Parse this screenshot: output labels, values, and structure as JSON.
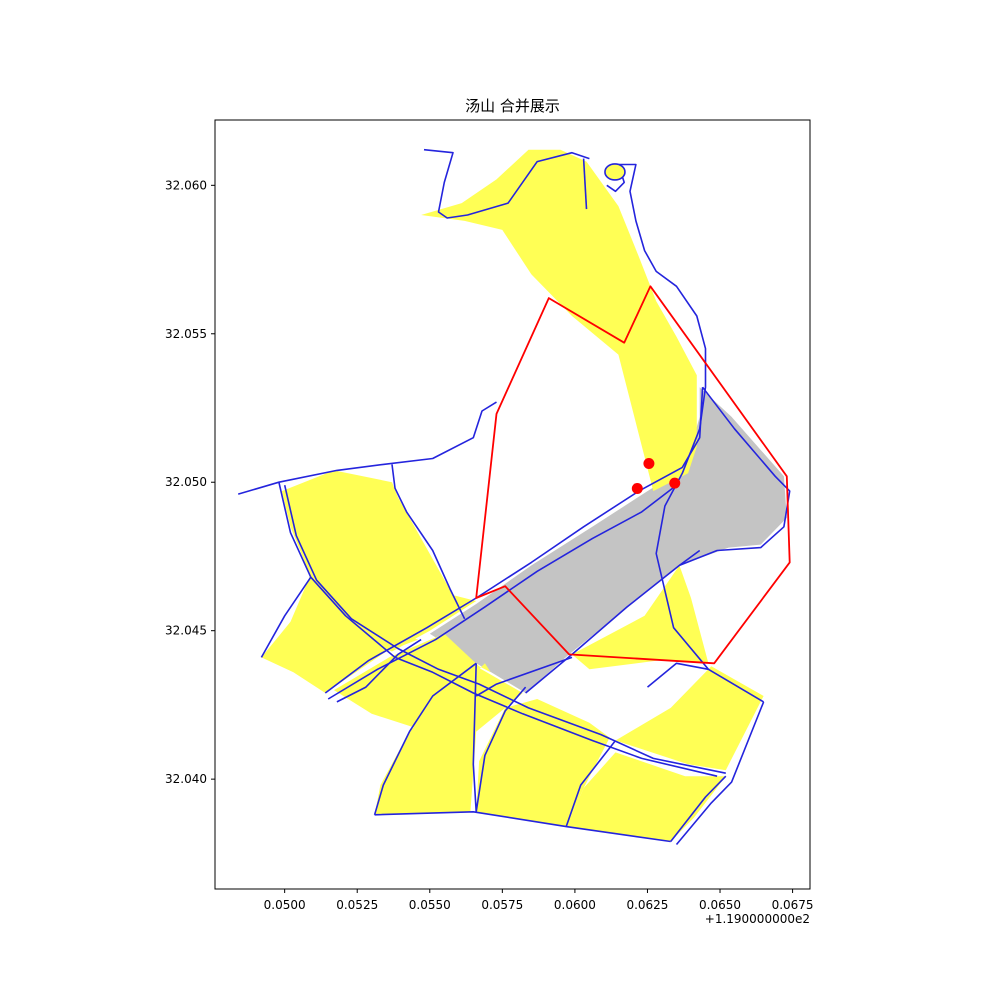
{
  "title": "汤山 合并展示",
  "axis_offset_text": "+1.190000000e2",
  "colors": {
    "plot_fill": "#ffff55",
    "merged_fill": "#c4c4c4",
    "boundary_line": "#2424dd",
    "merge_line": "#ff0000",
    "point": "#ff0000"
  },
  "chart_data": {
    "type": "map",
    "title": "汤山 合并展示",
    "xlim": [
      0.0476,
      0.0681
    ],
    "ylim": [
      32.0363,
      32.0622
    ],
    "grid": false,
    "x_tick_labels": [
      "0.0500",
      "0.0525",
      "0.0550",
      "0.0575",
      "0.0600",
      "0.0625",
      "0.0650",
      "0.0675"
    ],
    "x_tick_values": [
      0.05,
      0.0525,
      0.055,
      0.0575,
      0.06,
      0.0625,
      0.065,
      0.0675
    ],
    "y_tick_labels": [
      "32.040",
      "32.045",
      "32.050",
      "32.055",
      "32.060"
    ],
    "y_tick_values": [
      32.04,
      32.045,
      32.05,
      32.055,
      32.06
    ],
    "points": [
      {
        "x": 0.06255,
        "y": 32.05063
      },
      {
        "x": 0.06344,
        "y": 32.04997
      },
      {
        "x": 0.06215,
        "y": 32.04979
      }
    ],
    "merge_outline": [
      [
        0.0591,
        32.0562
      ],
      [
        0.0617,
        32.0547
      ],
      [
        0.0626,
        32.0566
      ],
      [
        0.0673,
        32.0502
      ],
      [
        0.0674,
        32.0473
      ],
      [
        0.0648,
        32.0439
      ],
      [
        0.0598,
        32.0442
      ],
      [
        0.0576,
        32.0465
      ],
      [
        0.0566,
        32.0461
      ],
      [
        0.0573,
        32.0523
      ]
    ],
    "merged_area": [
      [
        0.0643,
        32.0532
      ],
      [
        0.0654,
        32.0522
      ],
      [
        0.0672,
        32.0502
      ],
      [
        0.0673,
        32.0488
      ],
      [
        0.0664,
        32.0479
      ],
      [
        0.0653,
        32.0478
      ],
      [
        0.0636,
        32.0472
      ],
      [
        0.0598,
        32.0442
      ],
      [
        0.0583,
        32.0429
      ],
      [
        0.0566,
        32.0439
      ],
      [
        0.055,
        32.0449
      ],
      [
        0.0566,
        32.0459
      ],
      [
        0.0585,
        32.0472
      ],
      [
        0.0606,
        32.0485
      ],
      [
        0.0625,
        32.0497
      ],
      [
        0.0638,
        32.0505
      ],
      [
        0.064,
        32.0512
      ],
      [
        0.0643,
        32.0522
      ]
    ],
    "yellow_parcels": [
      [
        [
          0.0547,
          32.059
        ],
        [
          0.0561,
          32.0594
        ],
        [
          0.0573,
          32.0602
        ],
        [
          0.0584,
          32.0612
        ],
        [
          0.0595,
          32.0612
        ],
        [
          0.0604,
          32.0608
        ],
        [
          0.0615,
          32.0593
        ],
        [
          0.0622,
          32.0576
        ],
        [
          0.0628,
          32.0561
        ],
        [
          0.0635,
          32.0549
        ],
        [
          0.0642,
          32.0536
        ],
        [
          0.0642,
          32.0512
        ],
        [
          0.0639,
          32.0503
        ],
        [
          0.0627,
          32.0497
        ],
        [
          0.0615,
          32.0543
        ],
        [
          0.0599,
          32.0556
        ],
        [
          0.0585,
          32.057
        ],
        [
          0.0575,
          32.0585
        ],
        [
          0.0562,
          32.0588
        ]
      ],
      [
        [
          0.0499,
          32.0497
        ],
        [
          0.0517,
          32.0504
        ],
        [
          0.0537,
          32.05
        ],
        [
          0.0539,
          32.0495
        ],
        [
          0.0558,
          32.0462
        ],
        [
          0.0566,
          32.046
        ],
        [
          0.055,
          32.045
        ],
        [
          0.0537,
          32.0443
        ],
        [
          0.0515,
          32.0453
        ],
        [
          0.0509,
          32.0468
        ],
        [
          0.0502,
          32.0485
        ]
      ],
      [
        [
          0.0492,
          32.0441
        ],
        [
          0.0502,
          32.0453
        ],
        [
          0.0509,
          32.0469
        ],
        [
          0.0516,
          32.0465
        ],
        [
          0.0536,
          32.045
        ],
        [
          0.0546,
          32.0447
        ],
        [
          0.0535,
          32.0443
        ],
        [
          0.0514,
          32.0429
        ],
        [
          0.0503,
          32.0436
        ]
      ],
      [
        [
          0.0517,
          32.043
        ],
        [
          0.0536,
          32.0441
        ],
        [
          0.0555,
          32.0449
        ],
        [
          0.0567,
          32.0438
        ],
        [
          0.0571,
          32.0436
        ],
        [
          0.0569,
          32.0439
        ],
        [
          0.0562,
          32.0432
        ],
        [
          0.0546,
          32.0417
        ],
        [
          0.053,
          32.0422
        ]
      ],
      [
        [
          0.0531,
          32.0388
        ],
        [
          0.0533,
          32.0398
        ],
        [
          0.0543,
          32.0416
        ],
        [
          0.0553,
          32.0426
        ],
        [
          0.0566,
          32.0438
        ],
        [
          0.0582,
          32.0429
        ],
        [
          0.0576,
          32.0424
        ],
        [
          0.0566,
          32.0416
        ],
        [
          0.0564,
          32.0389
        ]
      ],
      [
        [
          0.0566,
          32.0389
        ],
        [
          0.0567,
          32.0406
        ],
        [
          0.0576,
          32.0424
        ],
        [
          0.0587,
          32.0427
        ],
        [
          0.0605,
          32.0419
        ],
        [
          0.0612,
          32.0414
        ],
        [
          0.0603,
          32.0397
        ],
        [
          0.0597,
          32.0384
        ]
      ],
      [
        [
          0.0597,
          32.0384
        ],
        [
          0.0603,
          32.0397
        ],
        [
          0.0614,
          32.0409
        ],
        [
          0.0638,
          32.0401
        ],
        [
          0.0652,
          32.0401
        ],
        [
          0.0641,
          32.0387
        ],
        [
          0.0633,
          32.0379
        ]
      ],
      [
        [
          0.0614,
          32.0413
        ],
        [
          0.0633,
          32.0424
        ],
        [
          0.0647,
          32.0438
        ],
        [
          0.0665,
          32.0428
        ],
        [
          0.0652,
          32.0403
        ],
        [
          0.0639,
          32.0405
        ]
      ],
      [
        [
          0.0599,
          32.0442
        ],
        [
          0.0624,
          32.0455
        ],
        [
          0.0636,
          32.0472
        ],
        [
          0.064,
          32.0461
        ],
        [
          0.0646,
          32.0439
        ],
        [
          0.0629,
          32.044
        ],
        [
          0.0605,
          32.0437
        ]
      ]
    ],
    "blue_boundaries": [
      [
        [
          0.0548,
          32.0612
        ],
        [
          0.0558,
          32.0611
        ],
        [
          0.0555,
          32.0601
        ],
        [
          0.0553,
          32.0591
        ],
        [
          0.0556,
          32.0589
        ],
        [
          0.0563,
          32.059
        ],
        [
          0.0577,
          32.0594
        ],
        [
          0.0587,
          32.0608
        ],
        [
          0.0599,
          32.0611
        ],
        [
          0.0605,
          32.0609
        ]
      ],
      [
        [
          0.0603,
          32.0609
        ],
        [
          0.0604,
          32.0592
        ]
      ],
      [
        [
          0.0614,
          32.0607
        ],
        [
          0.0621,
          32.0607
        ],
        [
          0.0619,
          32.0598
        ],
        [
          0.0621,
          32.0588
        ],
        [
          0.0624,
          32.0578
        ],
        [
          0.0628,
          32.0571
        ],
        [
          0.0635,
          32.0566
        ],
        [
          0.0642,
          32.0556
        ],
        [
          0.0645,
          32.0545
        ],
        [
          0.0645,
          32.0532
        ],
        [
          0.0643,
          32.0518
        ],
        [
          0.0637,
          32.0503
        ],
        [
          0.0631,
          32.0492
        ],
        [
          0.0628,
          32.0476
        ],
        [
          0.0634,
          32.0451
        ],
        [
          0.0646,
          32.0437
        ],
        [
          0.0665,
          32.0426
        ]
      ],
      [
        [
          0.0611,
          32.0604
        ],
        [
          0.0616,
          32.0604
        ],
        [
          0.0617,
          32.0601
        ],
        [
          0.0614,
          32.0598
        ],
        [
          0.0611,
          32.06
        ]
      ],
      [
        [
          0.0484,
          32.0496
        ],
        [
          0.0498,
          32.05
        ],
        [
          0.0518,
          32.0504
        ],
        [
          0.0534,
          32.0506
        ],
        [
          0.0551,
          32.0508
        ],
        [
          0.0565,
          32.0515
        ],
        [
          0.0568,
          32.0524
        ],
        [
          0.0573,
          32.0527
        ]
      ],
      [
        [
          0.0498,
          32.05
        ],
        [
          0.0502,
          32.0483
        ],
        [
          0.0509,
          32.0468
        ],
        [
          0.0521,
          32.0455
        ],
        [
          0.0538,
          32.0441
        ],
        [
          0.0551,
          32.0436
        ],
        [
          0.0565,
          32.0429
        ],
        [
          0.0582,
          32.0422
        ],
        [
          0.0606,
          32.0413
        ],
        [
          0.0623,
          32.0407
        ],
        [
          0.0649,
          32.0401
        ]
      ],
      [
        [
          0.05,
          32.0499
        ],
        [
          0.0504,
          32.0482
        ],
        [
          0.0511,
          32.0467
        ],
        [
          0.0523,
          32.0454
        ],
        [
          0.0539,
          32.0444
        ],
        [
          0.0553,
          32.0437
        ],
        [
          0.0567,
          32.0432
        ],
        [
          0.0584,
          32.0424
        ],
        [
          0.0609,
          32.0415
        ],
        [
          0.0627,
          32.0407
        ],
        [
          0.0652,
          32.0402
        ]
      ],
      [
        [
          0.0537,
          32.0506
        ],
        [
          0.0538,
          32.0498
        ],
        [
          0.0542,
          32.049
        ],
        [
          0.0551,
          32.0477
        ],
        [
          0.0557,
          32.0464
        ],
        [
          0.0562,
          32.0454
        ]
      ],
      [
        [
          0.0492,
          32.0441
        ],
        [
          0.05,
          32.0455
        ],
        [
          0.0509,
          32.0468
        ]
      ],
      [
        [
          0.0514,
          32.0429
        ],
        [
          0.0529,
          32.044
        ],
        [
          0.0549,
          32.0451
        ],
        [
          0.0566,
          32.0461
        ],
        [
          0.0585,
          32.0473
        ],
        [
          0.0603,
          32.0485
        ],
        [
          0.0622,
          32.0497
        ],
        [
          0.0637,
          32.0505
        ],
        [
          0.0643,
          32.0515
        ],
        [
          0.0644,
          32.0532
        ]
      ],
      [
        [
          0.0515,
          32.0427
        ],
        [
          0.0532,
          32.0437
        ],
        [
          0.0552,
          32.0447
        ],
        [
          0.0569,
          32.0458
        ],
        [
          0.0587,
          32.047
        ],
        [
          0.0606,
          32.0481
        ],
        [
          0.0623,
          32.049
        ],
        [
          0.0635,
          32.0499
        ]
      ],
      [
        [
          0.0547,
          32.0447
        ],
        [
          0.0539,
          32.0442
        ],
        [
          0.0528,
          32.0431
        ],
        [
          0.0518,
          32.0426
        ]
      ],
      [
        [
          0.0531,
          32.0388
        ],
        [
          0.0534,
          32.0398
        ],
        [
          0.0543,
          32.0416
        ],
        [
          0.0551,
          32.0428
        ],
        [
          0.0566,
          32.0439
        ]
      ],
      [
        [
          0.0566,
          32.0439
        ],
        [
          0.0565,
          32.0405
        ],
        [
          0.0566,
          32.0389
        ]
      ],
      [
        [
          0.0531,
          32.0388
        ],
        [
          0.0565,
          32.0389
        ],
        [
          0.0597,
          32.0384
        ],
        [
          0.0633,
          32.0379
        ]
      ],
      [
        [
          0.0597,
          32.0384
        ],
        [
          0.0602,
          32.0398
        ],
        [
          0.0614,
          32.0413
        ]
      ],
      [
        [
          0.0583,
          32.0431
        ],
        [
          0.0576,
          32.0423
        ],
        [
          0.0569,
          32.0408
        ],
        [
          0.0566,
          32.0389
        ]
      ],
      [
        [
          0.0633,
          32.0379
        ],
        [
          0.0645,
          32.0394
        ],
        [
          0.0652,
          32.0401
        ]
      ],
      [
        [
          0.0635,
          32.0378
        ],
        [
          0.0647,
          32.0392
        ],
        [
          0.0654,
          32.0399
        ],
        [
          0.0665,
          32.0426
        ]
      ],
      [
        [
          0.0625,
          32.0431
        ],
        [
          0.0635,
          32.0439
        ],
        [
          0.0646,
          32.0437
        ]
      ],
      [
        [
          0.0599,
          32.0441
        ],
        [
          0.0573,
          32.0432
        ],
        [
          0.0566,
          32.0428
        ]
      ],
      [
        [
          0.0583,
          32.0429
        ],
        [
          0.0599,
          32.0442
        ],
        [
          0.0618,
          32.0458
        ],
        [
          0.0636,
          32.0472
        ],
        [
          0.0643,
          32.0477
        ]
      ],
      [
        [
          0.0636,
          32.0472
        ],
        [
          0.0649,
          32.0477
        ],
        [
          0.0664,
          32.0478
        ],
        [
          0.0672,
          32.0485
        ],
        [
          0.0674,
          32.0497
        ],
        [
          0.0669,
          32.0502
        ],
        [
          0.0655,
          32.0518
        ],
        [
          0.0644,
          32.0532
        ]
      ]
    ]
  }
}
